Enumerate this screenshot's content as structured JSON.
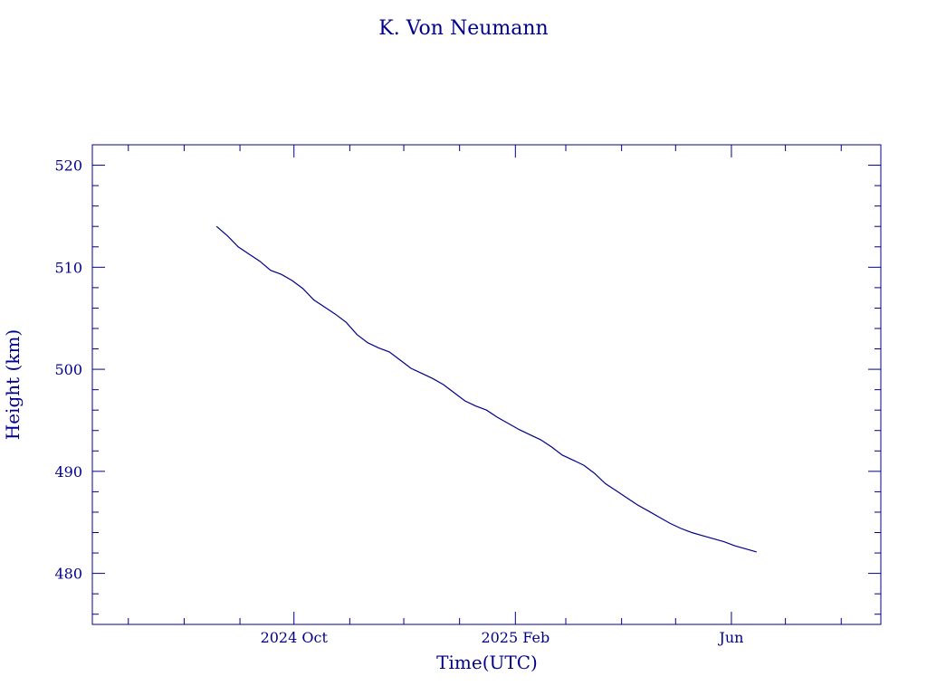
{
  "chart_data": {
    "type": "line",
    "title": "K. Von Neumann",
    "xlabel": "Time(UTC)",
    "ylabel": "Height (km)",
    "xlim": [
      "2024-06-11",
      "2025-08-23"
    ],
    "ylim": [
      475,
      522
    ],
    "y_ticks": [
      480,
      490,
      500,
      510,
      520
    ],
    "x_major_ticks": [
      {
        "label": "2024 Oct",
        "date": "2024-10-01"
      },
      {
        "label": "2025 Feb",
        "date": "2025-02-01"
      },
      {
        "label": "Jun",
        "date": "2025-06-01"
      }
    ],
    "x_minor_ticks": [
      "2024-07-01",
      "2024-08-01",
      "2024-09-01",
      "2024-11-01",
      "2024-12-01",
      "2025-01-01",
      "2025-03-01",
      "2025-04-01",
      "2025-05-01",
      "2025-07-01",
      "2025-08-01"
    ],
    "grid": false,
    "line_color": "#00008b",
    "series": [
      {
        "x": [
          "2024-08-19",
          "2024-08-25",
          "2024-08-31",
          "2024-09-06",
          "2024-09-12",
          "2024-09-18",
          "2024-09-24",
          "2024-09-30",
          "2024-10-06",
          "2024-10-12",
          "2024-10-18",
          "2024-10-24",
          "2024-10-30",
          "2024-11-05",
          "2024-11-11",
          "2024-11-17",
          "2024-11-23",
          "2024-11-29",
          "2024-12-05",
          "2024-12-11",
          "2024-12-17",
          "2024-12-23",
          "2024-12-29",
          "2025-01-04",
          "2025-01-10",
          "2025-01-16",
          "2025-01-22",
          "2025-01-28",
          "2025-02-03",
          "2025-02-09",
          "2025-02-15",
          "2025-02-21",
          "2025-02-27",
          "2025-03-05",
          "2025-03-11",
          "2025-03-17",
          "2025-03-23",
          "2025-03-29",
          "2025-04-04",
          "2025-04-10",
          "2025-04-16",
          "2025-04-22",
          "2025-04-28",
          "2025-05-04",
          "2025-05-10",
          "2025-05-16",
          "2025-05-22",
          "2025-05-28",
          "2025-06-03",
          "2025-06-09",
          "2025-06-15"
        ],
        "y": [
          514.0,
          513.1,
          512.0,
          511.3,
          510.6,
          509.7,
          509.3,
          508.7,
          507.9,
          506.8,
          506.1,
          505.4,
          504.6,
          503.4,
          502.6,
          502.1,
          501.7,
          500.9,
          500.1,
          499.6,
          499.1,
          498.5,
          497.7,
          496.9,
          496.4,
          496.0,
          495.3,
          494.7,
          494.1,
          493.6,
          493.1,
          492.4,
          491.6,
          491.1,
          490.6,
          489.8,
          488.8,
          488.1,
          487.4,
          486.7,
          486.1,
          485.5,
          484.9,
          484.4,
          484.0,
          483.7,
          483.4,
          483.1,
          482.7,
          482.4,
          482.1
        ]
      }
    ]
  }
}
